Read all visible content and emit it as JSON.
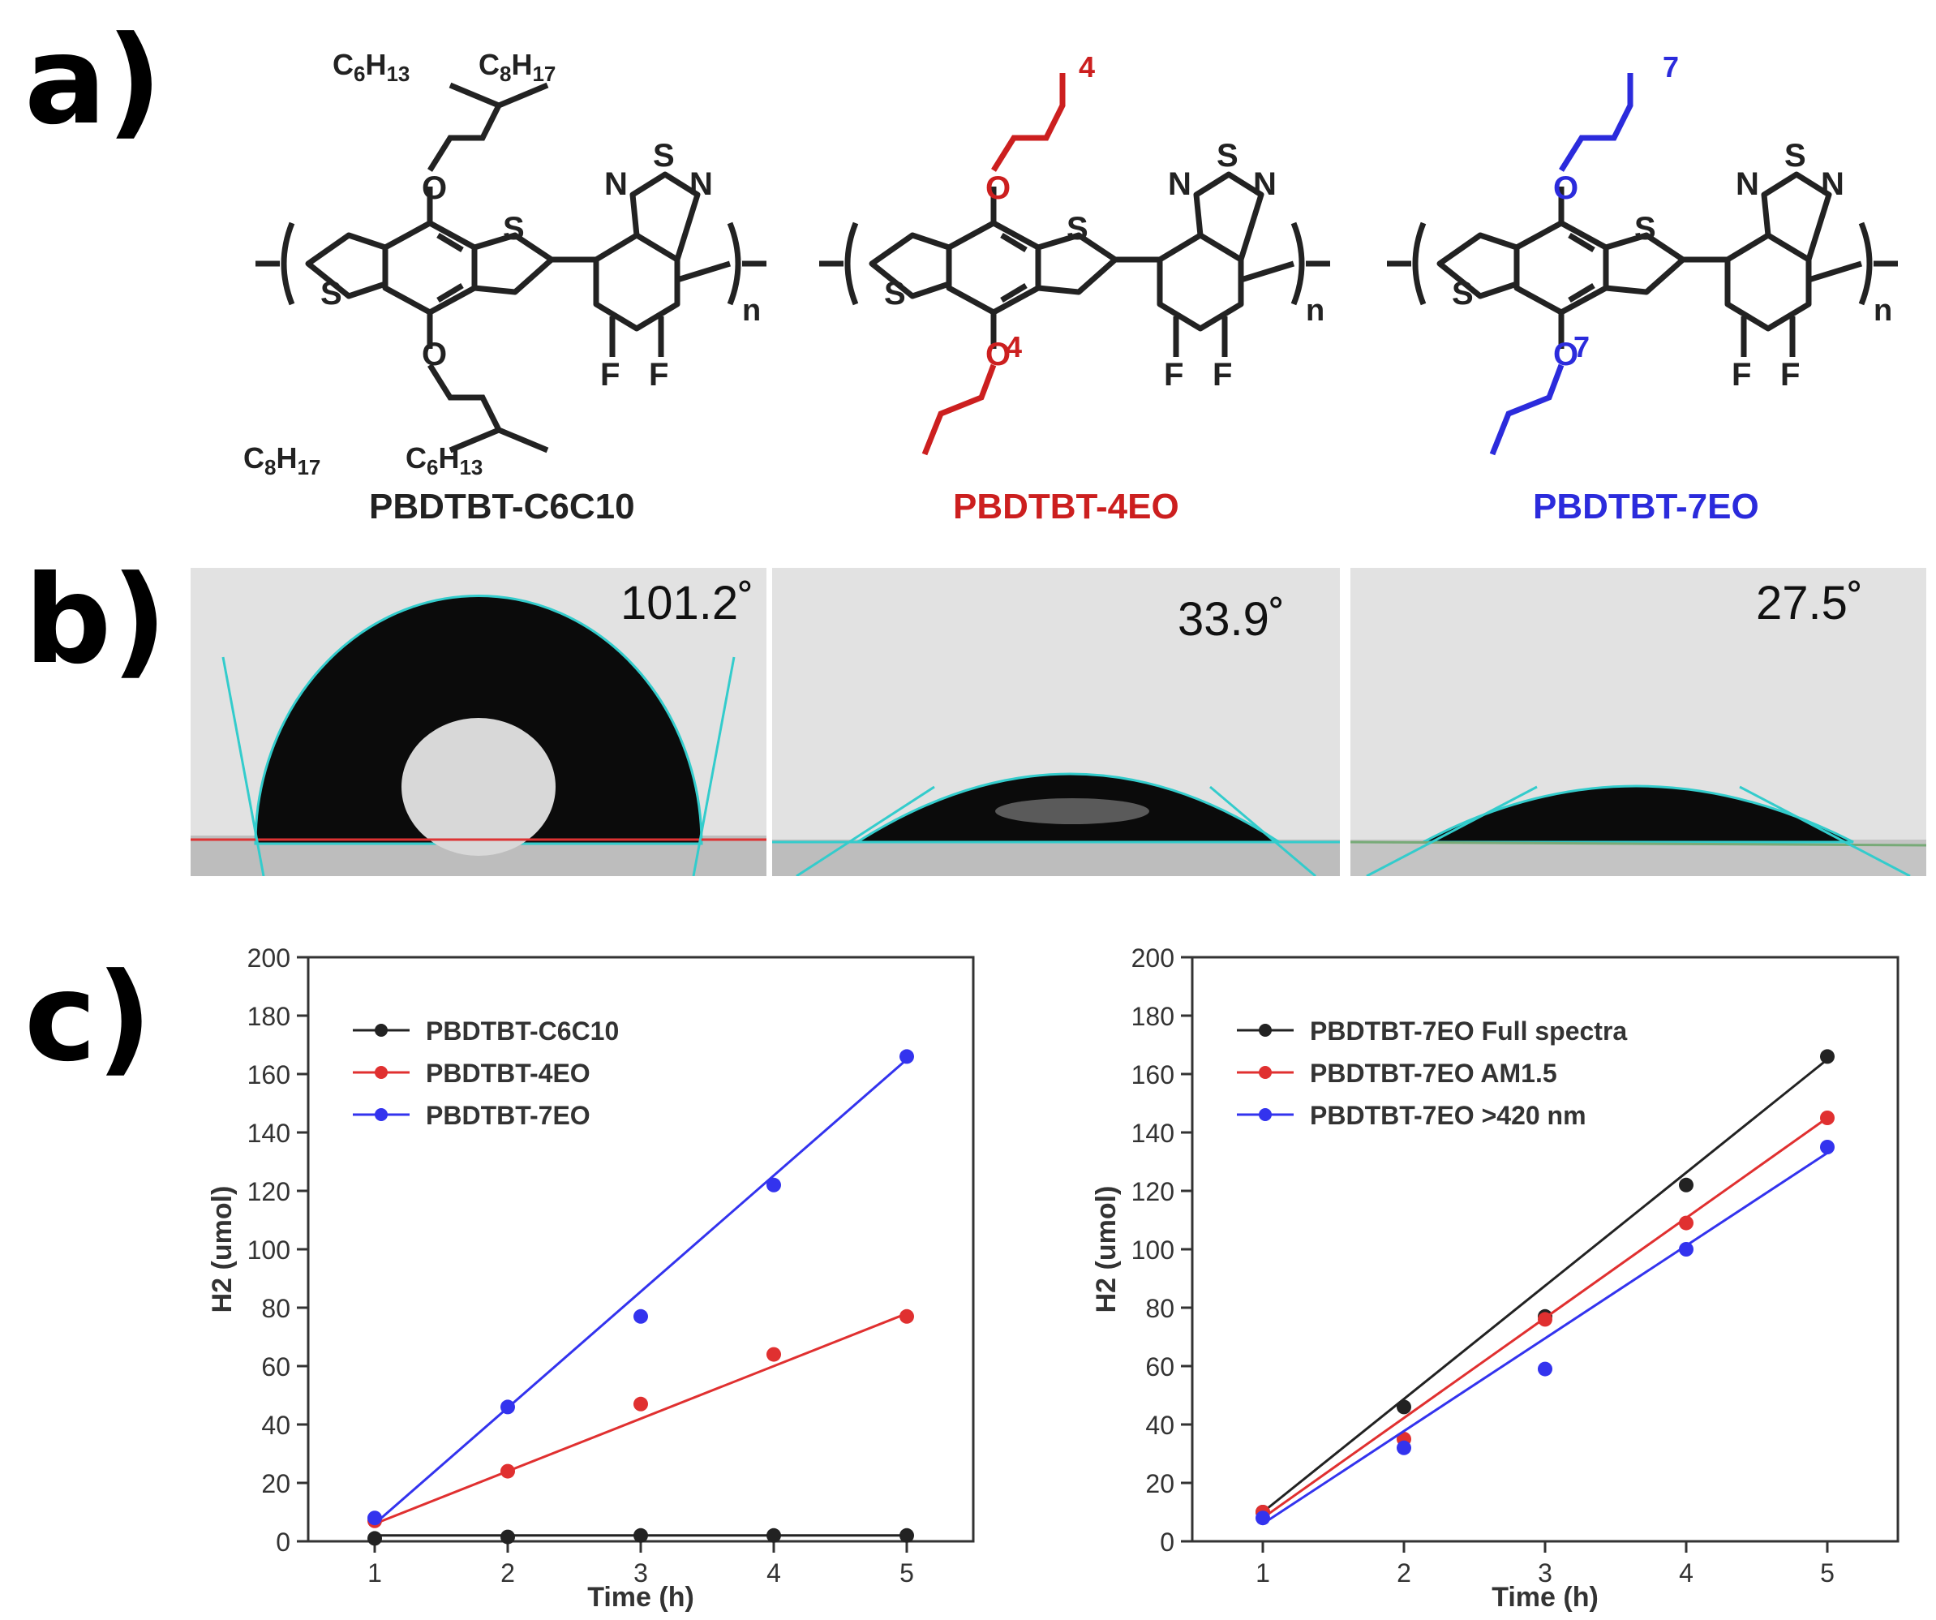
{
  "panel_labels": {
    "a": "a)",
    "b": "b)",
    "c": "c)"
  },
  "molecules": [
    {
      "name": "PBDTBT-C6C10",
      "color": "#222222",
      "side_chain_top": [
        "C6H13",
        "C8H17"
      ],
      "side_chain_bottom": [
        "C8H17",
        "C6H13"
      ],
      "repeat": null
    },
    {
      "name": "PBDTBT-4EO",
      "color": "#cc1f1f",
      "repeat": "4"
    },
    {
      "name": "PBDTBT-7EO",
      "color": "#2b2bdc",
      "repeat": "7"
    }
  ],
  "atoms": {
    "S": "S",
    "N": "N",
    "F": "F",
    "O": "O",
    "n": "n"
  },
  "contact_angles": [
    "101.2˚",
    "33.9˚",
    "27.5˚"
  ],
  "chart_data": [
    {
      "type": "scatter",
      "xlabel": "Time (h)",
      "ylabel": "H2 (umol)",
      "xlim": [
        0.5,
        5.5
      ],
      "ylim": [
        0,
        200
      ],
      "xticks": [
        1,
        2,
        3,
        4,
        5
      ],
      "yticks": [
        0,
        20,
        40,
        60,
        80,
        100,
        120,
        140,
        160,
        180,
        200
      ],
      "legend": "top-left",
      "series": [
        {
          "name": "PBDTBT-C6C10",
          "color": "#222222",
          "x": [
            1,
            2,
            3,
            4,
            5
          ],
          "y": [
            1,
            1.5,
            2,
            2,
            2
          ],
          "fit": [
            2,
            2
          ]
        },
        {
          "name": "PBDTBT-4EO",
          "color": "#e03030",
          "x": [
            1,
            2,
            3,
            4,
            5
          ],
          "y": [
            7,
            24,
            47,
            64,
            77
          ],
          "fit": [
            6,
            78
          ]
        },
        {
          "name": "PBDTBT-7EO",
          "color": "#3333ee",
          "x": [
            1,
            2,
            3,
            4,
            5
          ],
          "y": [
            8,
            46,
            77,
            122,
            166
          ],
          "fit": [
            6,
            165
          ]
        }
      ]
    },
    {
      "type": "scatter",
      "xlabel": "Time (h)",
      "ylabel": "H2 (umol)",
      "xlim": [
        0.5,
        5.5
      ],
      "ylim": [
        0,
        200
      ],
      "xticks": [
        1,
        2,
        3,
        4,
        5
      ],
      "yticks": [
        0,
        20,
        40,
        60,
        80,
        100,
        120,
        140,
        160,
        180,
        200
      ],
      "legend": "top-left",
      "series": [
        {
          "name": "PBDTBT-7EO Full spectra",
          "color": "#222222",
          "x": [
            1,
            2,
            3,
            4,
            5
          ],
          "y": [
            10,
            46,
            77,
            122,
            166
          ],
          "fit": [
            10,
            165
          ]
        },
        {
          "name": "PBDTBT-7EO AM1.5",
          "color": "#e03030",
          "x": [
            1,
            2,
            3,
            4,
            5
          ],
          "y": [
            10,
            35,
            76,
            109,
            145
          ],
          "fit": [
            8,
            145
          ]
        },
        {
          "name": "PBDTBT-7EO >420 nm",
          "color": "#3333ee",
          "x": [
            1,
            2,
            3,
            4,
            5
          ],
          "y": [
            8,
            32,
            59,
            100,
            135
          ],
          "fit": [
            6,
            133
          ]
        }
      ]
    }
  ]
}
